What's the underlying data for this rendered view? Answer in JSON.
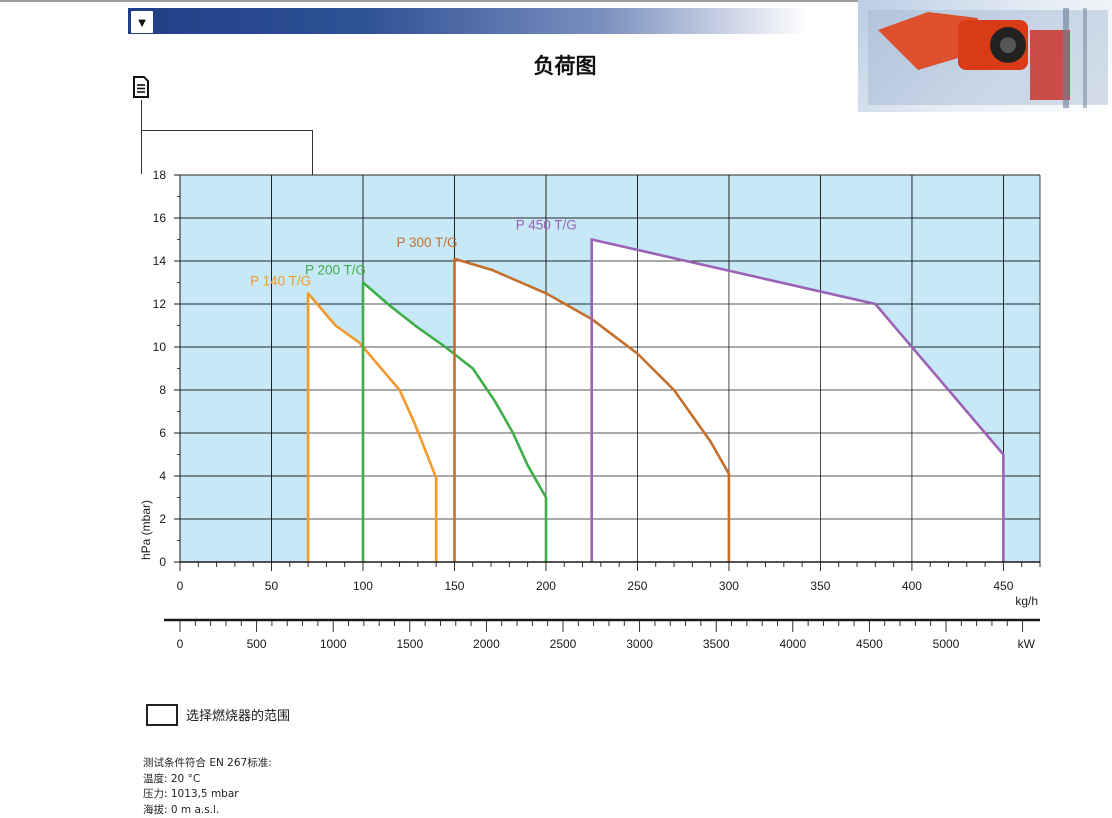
{
  "header": {
    "title": "负荷图"
  },
  "chart_data": {
    "type": "area",
    "y_axis": {
      "label": "hPa (mbar)",
      "range": [
        0,
        18
      ],
      "ticks": [
        0,
        2,
        4,
        6,
        8,
        10,
        12,
        14,
        16,
        18
      ]
    },
    "x_axis_primary": {
      "unit": "kg/h",
      "range": [
        0,
        470
      ],
      "ticks": [
        0,
        50,
        100,
        150,
        200,
        250,
        300,
        350,
        400,
        450
      ]
    },
    "x_axis_secondary": {
      "unit": "kW",
      "ticks": [
        0,
        500,
        1000,
        1500,
        2000,
        2500,
        3000,
        3500,
        4000,
        4500,
        5000
      ]
    },
    "grid": true,
    "background_color": "#c6e8f7",
    "series": [
      {
        "name": "P 140 T/G",
        "color": "#f39a2b",
        "points": [
          [
            70,
            0
          ],
          [
            70,
            12.5
          ],
          [
            85,
            11
          ],
          [
            98,
            10.2
          ],
          [
            110,
            9
          ],
          [
            120,
            8
          ],
          [
            128,
            6.5
          ],
          [
            135,
            5
          ],
          [
            140,
            3.9
          ],
          [
            140,
            0
          ]
        ]
      },
      {
        "name": "P 200 T/G",
        "color": "#3eae48",
        "points": [
          [
            100,
            0
          ],
          [
            100,
            13
          ],
          [
            115,
            11.9
          ],
          [
            130,
            10.9
          ],
          [
            145,
            10
          ],
          [
            160,
            9
          ],
          [
            172,
            7.5
          ],
          [
            182,
            6
          ],
          [
            190,
            4.5
          ],
          [
            200,
            3
          ],
          [
            200,
            0
          ]
        ]
      },
      {
        "name": "P 300 T/G",
        "color": "#c46f2c",
        "points": [
          [
            150,
            0
          ],
          [
            150,
            14.1
          ],
          [
            170,
            13.6
          ],
          [
            200,
            12.5
          ],
          [
            225,
            11.3
          ],
          [
            250,
            9.7
          ],
          [
            270,
            8
          ],
          [
            290,
            5.6
          ],
          [
            300,
            4.1
          ],
          [
            300,
            0
          ]
        ]
      },
      {
        "name": "P 450 T/G",
        "color": "#9b62b5",
        "points": [
          [
            225,
            0
          ],
          [
            225,
            15
          ],
          [
            380,
            12
          ],
          [
            450,
            5
          ],
          [
            450,
            0
          ]
        ]
      }
    ]
  },
  "legend": {
    "label": "选择燃烧器的范围"
  },
  "notes": [
    "测试条件符合 EN 267标准:",
    "温度: 20 °C",
    "压力: 1013,5 mbar",
    "海拔: 0 m a.s.l."
  ],
  "icons": {
    "menu": "menu-dropdown-icon",
    "document": "document-icon"
  }
}
